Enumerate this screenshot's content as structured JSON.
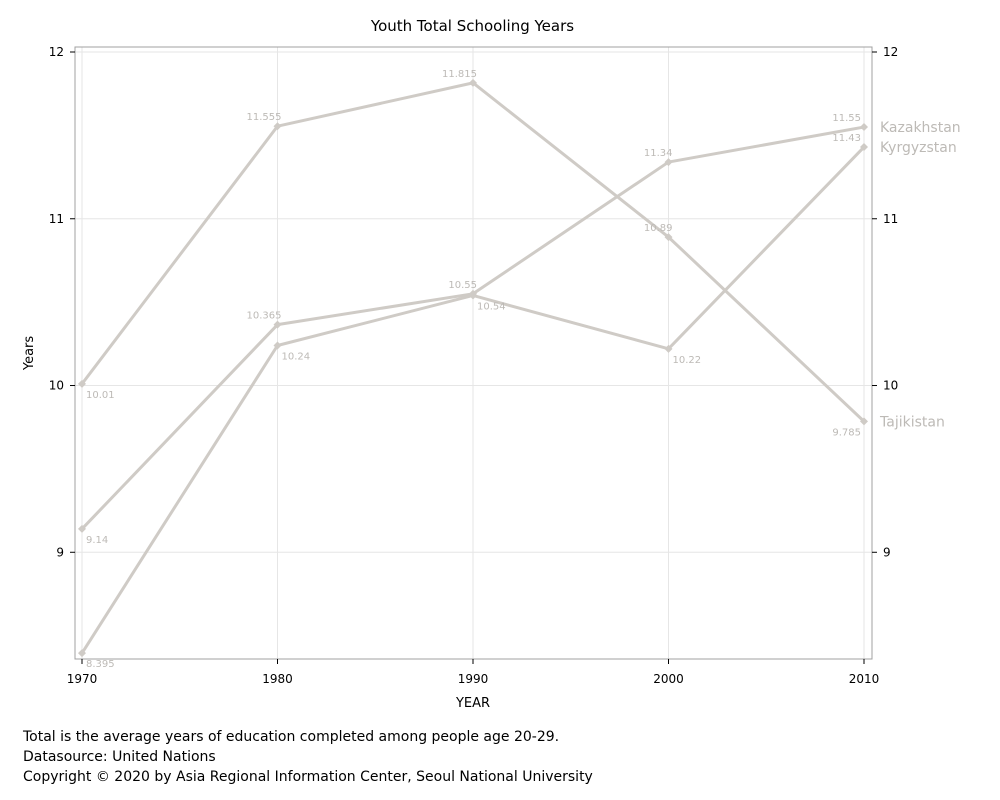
{
  "chart_data": {
    "type": "line",
    "title": "Youth Total Schooling Years",
    "xlabel": "YEAR",
    "ylabel": "Years",
    "x": [
      1970,
      1980,
      1990,
      2000,
      2010
    ],
    "xlim": [
      1970,
      2010
    ],
    "ylim": [
      8.36,
      12.03
    ],
    "yticks": [
      9,
      10,
      11,
      12
    ],
    "right_axis_ticks": [
      9,
      10,
      11,
      12
    ],
    "grid": true,
    "legend": "line-end labels on the right",
    "series_color": "#cfcbc6",
    "series": [
      {
        "name": "Kazakhstan",
        "values": [
          9.14,
          10.365,
          10.55,
          11.34,
          11.55
        ],
        "labels": [
          "9.14",
          "10.365",
          "10.55",
          "11.34",
          "11.55"
        ],
        "label_pos": [
          "below",
          "above",
          "above",
          "above",
          "above"
        ]
      },
      {
        "name": "Kyrgyzstan",
        "values": [
          8.395,
          10.24,
          10.54,
          10.22,
          11.43
        ],
        "labels": [
          "8.395",
          "10.24",
          "10.54",
          "10.22",
          "11.43"
        ],
        "label_pos": [
          "below",
          "below",
          "below",
          "below",
          "above"
        ]
      },
      {
        "name": "Tajikistan",
        "values": [
          10.01,
          11.555,
          11.815,
          10.89,
          9.785
        ],
        "labels": [
          "10.01",
          "11.555",
          "11.815",
          "10.89",
          "9.785"
        ],
        "label_pos": [
          "below",
          "above",
          "above",
          "above",
          "below"
        ]
      }
    ]
  },
  "footer": {
    "note": "Total is the average years of education completed among people age 20-29.",
    "source": "Datasource: United Nations",
    "copyright": "Copyright © 2020 by Asia Regional Information Center, Seoul National University"
  }
}
